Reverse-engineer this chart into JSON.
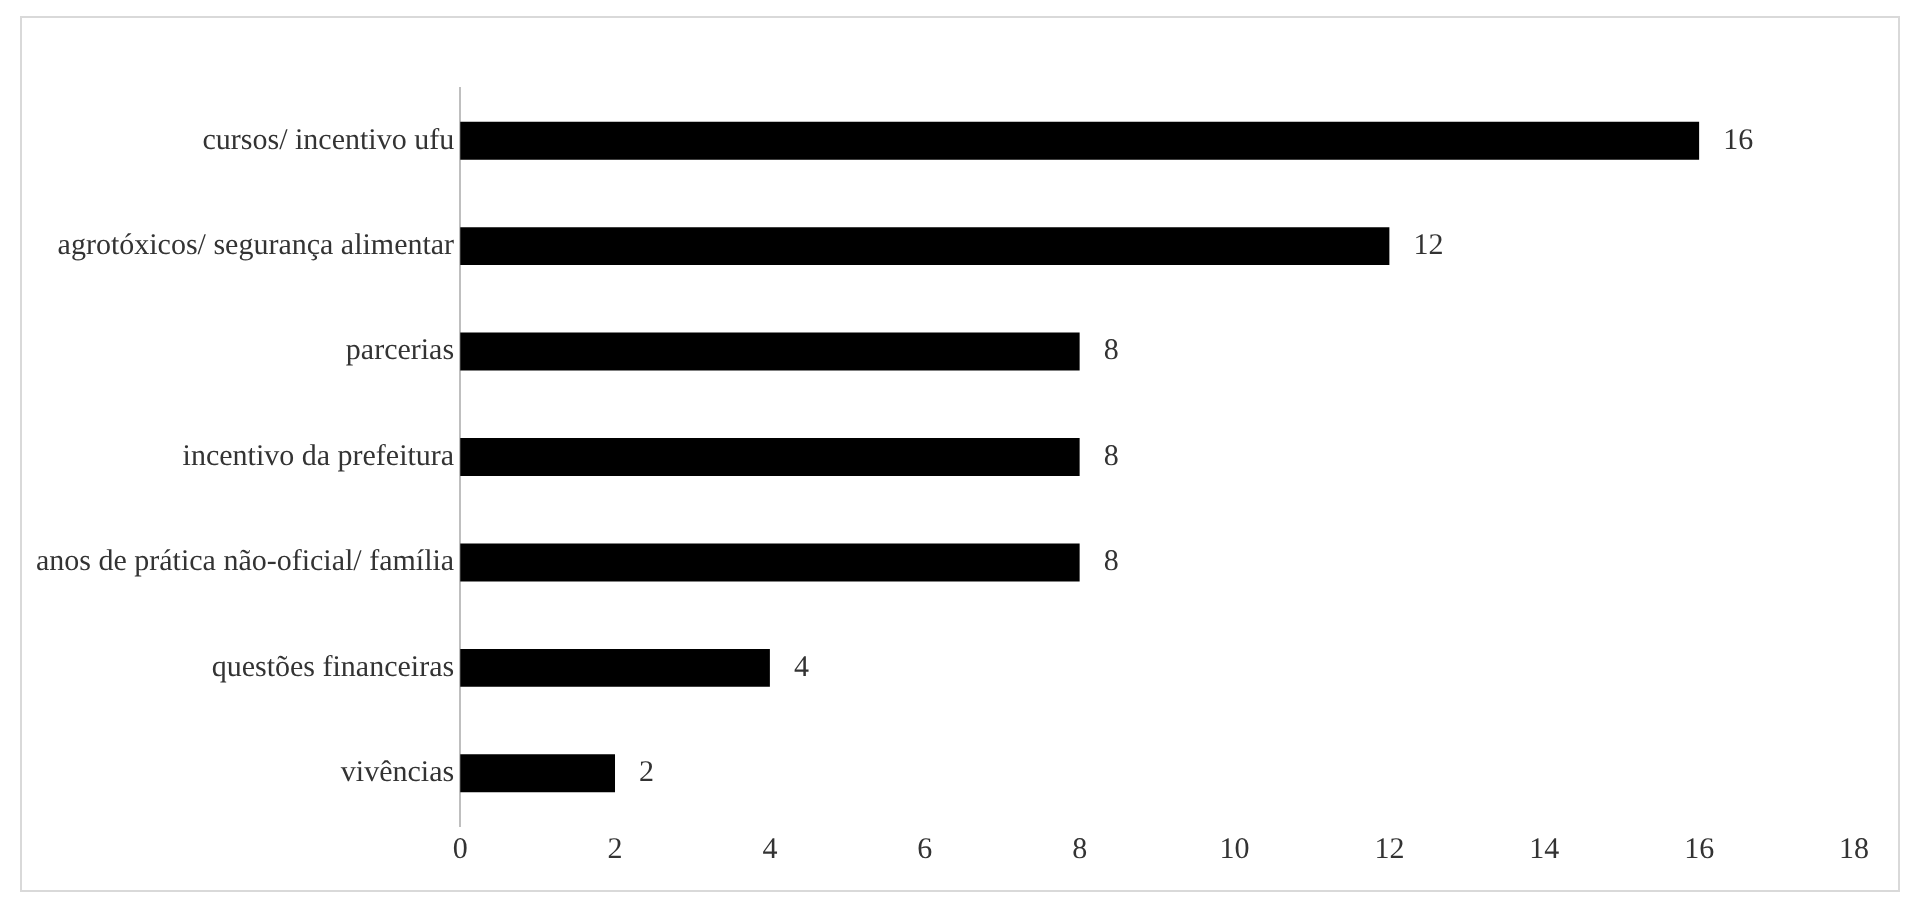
{
  "chart_data": {
    "type": "bar",
    "orientation": "horizontal",
    "categories": [
      "cursos/ incentivo ufu",
      "agrotóxicos/ segurança alimentar",
      "parcerias",
      "incentivo da prefeitura",
      "anos de prática não-oficial/ família",
      "questões financeiras",
      "vivências"
    ],
    "values": [
      16,
      12,
      8,
      8,
      8,
      4,
      2
    ],
    "color": "#000000",
    "xlim": [
      0,
      18
    ],
    "xticks": [
      0,
      2,
      4,
      6,
      8,
      10,
      12,
      14,
      16,
      18
    ],
    "grid": false,
    "legend": false,
    "data_labels": true
  }
}
